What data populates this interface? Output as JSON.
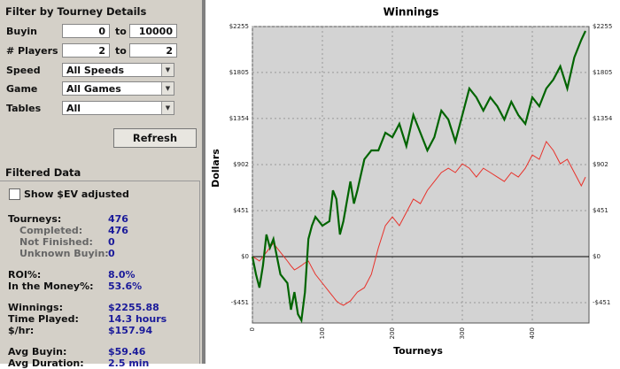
{
  "filter": {
    "title": "Filter by Tourney Details",
    "buyin": {
      "label": "Buyin",
      "min": "0",
      "sep": "to",
      "max": "10000"
    },
    "players": {
      "label": "# Players",
      "min": "2",
      "sep": "to",
      "max": "2"
    },
    "speed": {
      "label": "Speed",
      "value": "All Speeds"
    },
    "game": {
      "label": "Game",
      "value": "All Games"
    },
    "tables": {
      "label": "Tables",
      "value": "All"
    },
    "refresh": "Refresh"
  },
  "filtered": {
    "title": "Filtered Data",
    "ev_checkbox": "Show $EV adjusted",
    "groups": [
      [
        {
          "label": "Tourneys:",
          "value": "476"
        },
        {
          "label": "Completed:",
          "value": "476",
          "sub": true
        },
        {
          "label": "Not Finished:",
          "value": "0",
          "sub": true
        },
        {
          "label": "Unknown Buyin:",
          "value": "0",
          "sub": true
        }
      ],
      [
        {
          "label": "ROI%:",
          "value": "8.0%"
        },
        {
          "label": "In the Money%:",
          "value": "53.6%"
        }
      ],
      [
        {
          "label": "Winnings:",
          "value": "$2255.88"
        },
        {
          "label": "Time Played:",
          "value": "14.3 hours"
        },
        {
          "label": "$/hr:",
          "value": "$157.94"
        }
      ],
      [
        {
          "label": "Avg Buyin:",
          "value": "$59.46"
        },
        {
          "label": "Avg Duration:",
          "value": "2.5 min"
        }
      ]
    ]
  },
  "chart_data": {
    "type": "line",
    "title": "Winnings",
    "xlabel": "Tourneys",
    "ylabel": "Dollars",
    "x": [
      0,
      5,
      10,
      15,
      20,
      25,
      30,
      40,
      50,
      55,
      60,
      65,
      70,
      75,
      80,
      85,
      90,
      100,
      110,
      115,
      120,
      125,
      130,
      140,
      145,
      150,
      160,
      170,
      180,
      190,
      200,
      210,
      220,
      230,
      240,
      250,
      260,
      270,
      280,
      290,
      300,
      310,
      320,
      330,
      340,
      350,
      360,
      370,
      380,
      390,
      400,
      410,
      420,
      430,
      440,
      450,
      460,
      470,
      476
    ],
    "series": [
      {
        "color": "#006400",
        "values": [
          0,
          -173,
          -304,
          -87,
          217,
          87,
          173,
          -173,
          -260,
          -520,
          -347,
          -564,
          -624,
          -347,
          173,
          304,
          390,
          304,
          347,
          650,
          564,
          217,
          347,
          737,
          520,
          650,
          954,
          1041,
          1041,
          1214,
          1171,
          1301,
          1084,
          1388,
          1214,
          1041,
          1171,
          1431,
          1344,
          1128,
          1388,
          1648,
          1561,
          1431,
          1561,
          1474,
          1344,
          1518,
          1388,
          1301,
          1561,
          1474,
          1648,
          1735,
          1865,
          1648,
          1952,
          2125,
          2212
        ]
      },
      {
        "color": "#e8312a",
        "values": [
          0,
          -20,
          -43,
          0,
          43,
          90,
          130,
          43,
          -43,
          -90,
          -130,
          -110,
          -87,
          -60,
          -43,
          -110,
          -173,
          -260,
          -347,
          -390,
          -434,
          -460,
          -477,
          -434,
          -390,
          -347,
          -304,
          -173,
          87,
          304,
          390,
          304,
          434,
          564,
          520,
          650,
          737,
          824,
          867,
          824,
          910,
          867,
          780,
          867,
          824,
          780,
          737,
          824,
          780,
          867,
          997,
          954,
          1128,
          1041,
          910,
          954,
          824,
          694,
          780
        ]
      }
    ],
    "xlim": [
      0,
      481
    ],
    "ylim": [
      -650,
      2255
    ],
    "xticks": [
      0,
      100,
      200,
      300,
      400
    ],
    "yticks": [
      {
        "value": -451,
        "label": "-$451"
      },
      {
        "value": 0,
        "label": "$0"
      },
      {
        "value": 451,
        "label": "$451"
      },
      {
        "value": 902,
        "label": "$902"
      },
      {
        "value": 1354,
        "label": "$1354"
      },
      {
        "value": 1805,
        "label": "$1805"
      },
      {
        "value": 2255,
        "label": "$2255"
      }
    ],
    "grid": true
  }
}
